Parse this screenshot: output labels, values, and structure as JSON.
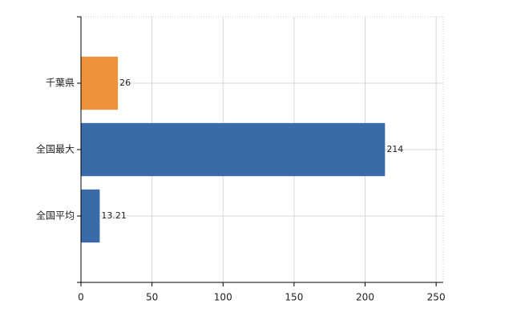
{
  "chart_data": {
    "type": "hbar",
    "categories": [
      "千葉県",
      "全国最大",
      "全国平均"
    ],
    "values": [
      26,
      214,
      13.21
    ],
    "colors": [
      "#f0923b",
      "#3a6aa8",
      "#3a6aa8"
    ],
    "xlim": [
      0,
      255
    ],
    "xticks": [
      0,
      50,
      100,
      150,
      200,
      250
    ],
    "grid": true
  }
}
